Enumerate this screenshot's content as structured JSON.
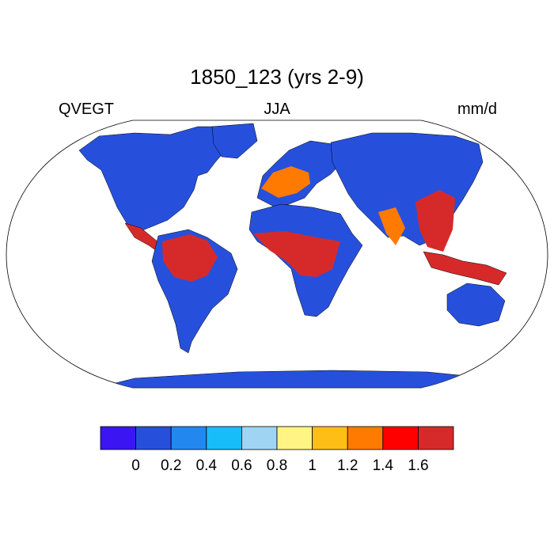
{
  "title": "1850_123 (yrs 2-9)",
  "left_label": "QVEGT",
  "center_label": "JJA",
  "right_label": "mm/d",
  "projection": "Robinson",
  "colorbar": {
    "colors": [
      "#3b16f2",
      "#2650dc",
      "#2288f0",
      "#16bdf8",
      "#9fd5f2",
      "#fff484",
      "#ffbe16",
      "#ff7a00",
      "#ff0000",
      "#d62a2a"
    ],
    "levels": [
      "0",
      "0.2",
      "0.4",
      "0.6",
      "0.8",
      "1",
      "1.2",
      "1.4",
      "1.6"
    ]
  },
  "map_colors": {
    "land_low": "#2650dc",
    "land_mid": "#2288f0",
    "moderate": "#ffbe16",
    "high": "#d62a2a",
    "very_high": "#ff0000",
    "ocean": "#ffffff",
    "outline": "#000000"
  }
}
